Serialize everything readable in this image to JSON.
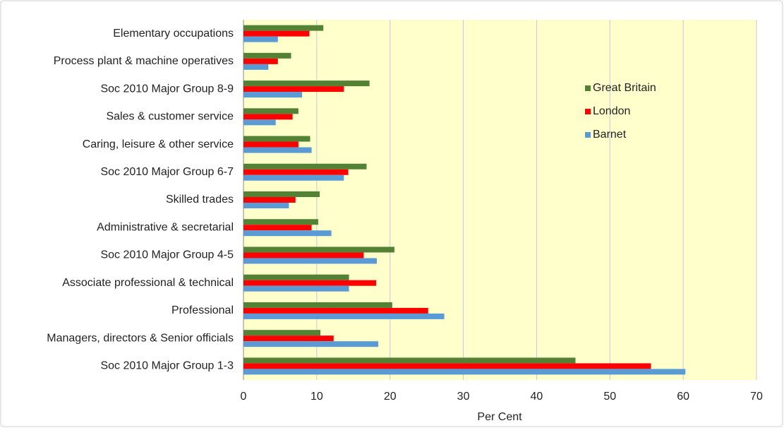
{
  "chart_data": {
    "type": "bar",
    "orientation": "horizontal",
    "xlabel": "Per Cent",
    "categories": [
      "Elementary occupations",
      "Process plant & machine operatives",
      "Soc 2010 Major Group 8-9",
      "Sales & customer service",
      "Caring, leisure & other service",
      "Soc 2010 Major Group 6-7",
      "Skilled trades",
      "Administrative & secretarial",
      "Soc 2010 Major Group 4-5",
      "Associate professional & technical",
      "Professional",
      "Managers, directors & Senior officials",
      "Soc 2010 Major Group 1-3"
    ],
    "series": [
      {
        "name": "Great Britain",
        "color": "#548235",
        "values": [
          10.9,
          6.5,
          17.2,
          7.5,
          9.1,
          16.8,
          10.4,
          10.2,
          20.6,
          14.4,
          20.3,
          10.5,
          45.3
        ]
      },
      {
        "name": "London",
        "color": "#ff0000",
        "values": [
          9.0,
          4.7,
          13.7,
          6.7,
          7.5,
          14.3,
          7.1,
          9.3,
          16.4,
          18.1,
          25.2,
          12.3,
          55.6
        ]
      },
      {
        "name": "Barnet",
        "color": "#5b9bd5",
        "values": [
          4.7,
          3.4,
          8.0,
          4.4,
          9.3,
          13.7,
          6.2,
          12.0,
          18.2,
          14.4,
          27.4,
          18.4,
          60.3
        ]
      }
    ],
    "xlim": [
      0,
      70
    ],
    "xticks": [
      0,
      10,
      20,
      30,
      40,
      50,
      60,
      70
    ],
    "grid": true,
    "legend": "upper right",
    "plot_background": "#ffffcc"
  }
}
